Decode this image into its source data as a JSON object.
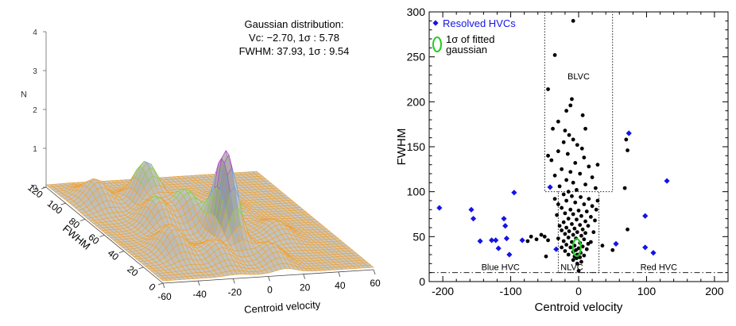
{
  "surface_panel": {
    "annotation_lines": [
      "Gaussian distribution:",
      "Vc: −2.70, 1σ : 5.78",
      "FWHM: 37.93, 1σ : 9.54"
    ],
    "colors": {
      "mesh": "#f0a030",
      "peak_purple": "#b03cc8",
      "peak_blue": "#6ea0e6",
      "peak_green": "#8ccd3c",
      "shade": "#c8c8c8"
    }
  },
  "chart_data": [
    {
      "type": "surface",
      "xlabel": "Centroid velocity",
      "ylabel": "FWHM",
      "zlabel": "N",
      "x_ticks": [
        "-60",
        "-40",
        "-20",
        "0",
        "20",
        "40",
        "60"
      ],
      "y_ticks": [
        "0",
        "20",
        "40",
        "60",
        "80",
        "100",
        "120"
      ],
      "z_ticks": [
        "0",
        "1",
        "2",
        "3",
        "4"
      ],
      "xlim": [
        -60,
        60
      ],
      "ylim": [
        0,
        120
      ],
      "zlim": [
        0,
        4
      ],
      "peaks": [
        {
          "x": -3,
          "y": 38,
          "z": 2.4
        },
        {
          "x": -22,
          "y": 85,
          "z": 1.2
        },
        {
          "x": -12,
          "y": 62,
          "z": 0.9
        },
        {
          "x": -38,
          "y": 30,
          "z": 0.75
        },
        {
          "x": -18,
          "y": 20,
          "z": 0.5
        },
        {
          "x": 10,
          "y": 15,
          "z": 0.45
        },
        {
          "x": 30,
          "y": 45,
          "z": 0.35
        },
        {
          "x": -45,
          "y": 95,
          "z": 0.6
        },
        {
          "x": 20,
          "y": 80,
          "z": 0.3
        },
        {
          "x": -30,
          "y": 60,
          "z": 0.8
        }
      ]
    },
    {
      "type": "scatter",
      "xlabel": "Centroid velocity",
      "ylabel": "FWHM",
      "xlim": [
        -220,
        220
      ],
      "ylim": [
        0,
        300
      ],
      "x_ticks": [
        "-200",
        "-100",
        "0",
        "100",
        "200"
      ],
      "y_ticks": [
        "0",
        "50",
        "100",
        "150",
        "200",
        "250",
        "300"
      ],
      "legend": {
        "position": "top-left",
        "resolved_label": "Resolved HVCs",
        "ellipse_label": "1σ of fitted gaussian"
      },
      "region_labels": [
        "BLVC",
        "Blue HVC",
        "NLVC",
        "Red HVC"
      ],
      "colors": {
        "resolved": "#1414e6",
        "dots": "#000000",
        "ellipse": "#22cc22"
      },
      "ellipse": {
        "x": -2.7,
        "y": 37.93,
        "sx": 5.78,
        "sy": 9.54
      },
      "threshold_fwhm": 10,
      "resolved_hvcs": [
        {
          "x": -205,
          "y": 82
        },
        {
          "x": -158,
          "y": 80
        },
        {
          "x": -155,
          "y": 70
        },
        {
          "x": -145,
          "y": 45
        },
        {
          "x": -128,
          "y": 46
        },
        {
          "x": -122,
          "y": 46
        },
        {
          "x": -118,
          "y": 37
        },
        {
          "x": -110,
          "y": 70
        },
        {
          "x": -108,
          "y": 62
        },
        {
          "x": -106,
          "y": 48
        },
        {
          "x": -102,
          "y": 30
        },
        {
          "x": -95,
          "y": 99
        },
        {
          "x": -83,
          "y": 46
        },
        {
          "x": -33,
          "y": 36
        },
        {
          "x": -42,
          "y": 105
        },
        {
          "x": 55,
          "y": 42
        },
        {
          "x": 74,
          "y": 165
        },
        {
          "x": 98,
          "y": 73
        },
        {
          "x": 98,
          "y": 38
        },
        {
          "x": 110,
          "y": 32
        },
        {
          "x": 130,
          "y": 112
        }
      ],
      "points": [
        {
          "x": -8,
          "y": 290
        },
        {
          "x": -35,
          "y": 252
        },
        {
          "x": -45,
          "y": 214
        },
        {
          "x": -10,
          "y": 203
        },
        {
          "x": -12,
          "y": 196
        },
        {
          "x": -38,
          "y": 170
        },
        {
          "x": -20,
          "y": 168
        },
        {
          "x": -14,
          "y": 163
        },
        {
          "x": -8,
          "y": 158
        },
        {
          "x": -22,
          "y": 155
        },
        {
          "x": -2,
          "y": 152
        },
        {
          "x": 5,
          "y": 148
        },
        {
          "x": -30,
          "y": 145
        },
        {
          "x": -16,
          "y": 142
        },
        {
          "x": 8,
          "y": 138
        },
        {
          "x": -40,
          "y": 135
        },
        {
          "x": -5,
          "y": 132
        },
        {
          "x": 15,
          "y": 128
        },
        {
          "x": -25,
          "y": 125
        },
        {
          "x": -12,
          "y": 122
        },
        {
          "x": 2,
          "y": 120
        },
        {
          "x": -35,
          "y": 118
        },
        {
          "x": 20,
          "y": 116
        },
        {
          "x": -18,
          "y": 113
        },
        {
          "x": -8,
          "y": 110
        },
        {
          "x": 10,
          "y": 108
        },
        {
          "x": -28,
          "y": 106
        },
        {
          "x": 25,
          "y": 104
        },
        {
          "x": -3,
          "y": 102
        },
        {
          "x": -15,
          "y": 100
        },
        {
          "x": 70,
          "y": 158
        },
        {
          "x": 72,
          "y": 146
        },
        {
          "x": 68,
          "y": 104
        },
        {
          "x": 72,
          "y": 58
        },
        {
          "x": -22,
          "y": 97
        },
        {
          "x": -10,
          "y": 95
        },
        {
          "x": 3,
          "y": 94
        },
        {
          "x": 15,
          "y": 92
        },
        {
          "x": -18,
          "y": 90
        },
        {
          "x": -5,
          "y": 88
        },
        {
          "x": 8,
          "y": 86
        },
        {
          "x": 20,
          "y": 84
        },
        {
          "x": -25,
          "y": 82
        },
        {
          "x": -12,
          "y": 80
        },
        {
          "x": 0,
          "y": 79
        },
        {
          "x": 12,
          "y": 78
        },
        {
          "x": -20,
          "y": 76
        },
        {
          "x": -8,
          "y": 75
        },
        {
          "x": 4,
          "y": 73
        },
        {
          "x": 18,
          "y": 72
        },
        {
          "x": -15,
          "y": 70
        },
        {
          "x": -3,
          "y": 69
        },
        {
          "x": 10,
          "y": 67
        },
        {
          "x": -22,
          "y": 66
        },
        {
          "x": -10,
          "y": 64
        },
        {
          "x": 2,
          "y": 63
        },
        {
          "x": 14,
          "y": 62
        },
        {
          "x": -18,
          "y": 60
        },
        {
          "x": -6,
          "y": 59
        },
        {
          "x": 6,
          "y": 58
        },
        {
          "x": -25,
          "y": 57
        },
        {
          "x": -14,
          "y": 56
        },
        {
          "x": -2,
          "y": 55
        },
        {
          "x": 10,
          "y": 54
        },
        {
          "x": -20,
          "y": 53
        },
        {
          "x": -8,
          "y": 52
        },
        {
          "x": 4,
          "y": 51
        },
        {
          "x": -55,
          "y": 52
        },
        {
          "x": -50,
          "y": 50
        },
        {
          "x": -62,
          "y": 47
        },
        {
          "x": -70,
          "y": 50
        },
        {
          "x": -75,
          "y": 45
        },
        {
          "x": -45,
          "y": 46
        },
        {
          "x": -15,
          "y": 49
        },
        {
          "x": -4,
          "y": 48
        },
        {
          "x": 8,
          "y": 47
        },
        {
          "x": -22,
          "y": 45
        },
        {
          "x": -10,
          "y": 44
        },
        {
          "x": 2,
          "y": 43
        },
        {
          "x": 14,
          "y": 42
        },
        {
          "x": -18,
          "y": 41
        },
        {
          "x": -6,
          "y": 40
        },
        {
          "x": 6,
          "y": 39
        },
        {
          "x": -12,
          "y": 38
        },
        {
          "x": 0,
          "y": 37
        },
        {
          "x": -4,
          "y": 35
        },
        {
          "x": -8,
          "y": 33
        },
        {
          "x": 3,
          "y": 32
        },
        {
          "x": -2,
          "y": 30
        },
        {
          "x": -6,
          "y": 28
        },
        {
          "x": 2,
          "y": 27
        },
        {
          "x": -3,
          "y": 26
        },
        {
          "x": -20,
          "y": 34
        },
        {
          "x": 12,
          "y": 36
        },
        {
          "x": -15,
          "y": 30
        },
        {
          "x": 8,
          "y": 29
        },
        {
          "x": -25,
          "y": 38
        },
        {
          "x": 18,
          "y": 44
        },
        {
          "x": -30,
          "y": 48
        },
        {
          "x": 22,
          "y": 55
        },
        {
          "x": -28,
          "y": 62
        },
        {
          "x": 24,
          "y": 68
        },
        {
          "x": -32,
          "y": 74
        },
        {
          "x": 26,
          "y": 80
        },
        {
          "x": -30,
          "y": 86
        },
        {
          "x": 28,
          "y": 90
        },
        {
          "x": -35,
          "y": 92
        },
        {
          "x": 0,
          "y": 12
        },
        {
          "x": -2,
          "y": 20
        },
        {
          "x": 4,
          "y": 22
        },
        {
          "x": -8,
          "y": 24
        },
        {
          "x": -48,
          "y": 28
        },
        {
          "x": 50,
          "y": 35
        },
        {
          "x": 35,
          "y": 40
        },
        {
          "x": 28,
          "y": 130
        },
        {
          "x": -45,
          "y": 140
        },
        {
          "x": 10,
          "y": 170
        },
        {
          "x": -30,
          "y": 178
        },
        {
          "x": 6,
          "y": 185
        },
        {
          "x": -18,
          "y": 190
        }
      ]
    }
  ]
}
